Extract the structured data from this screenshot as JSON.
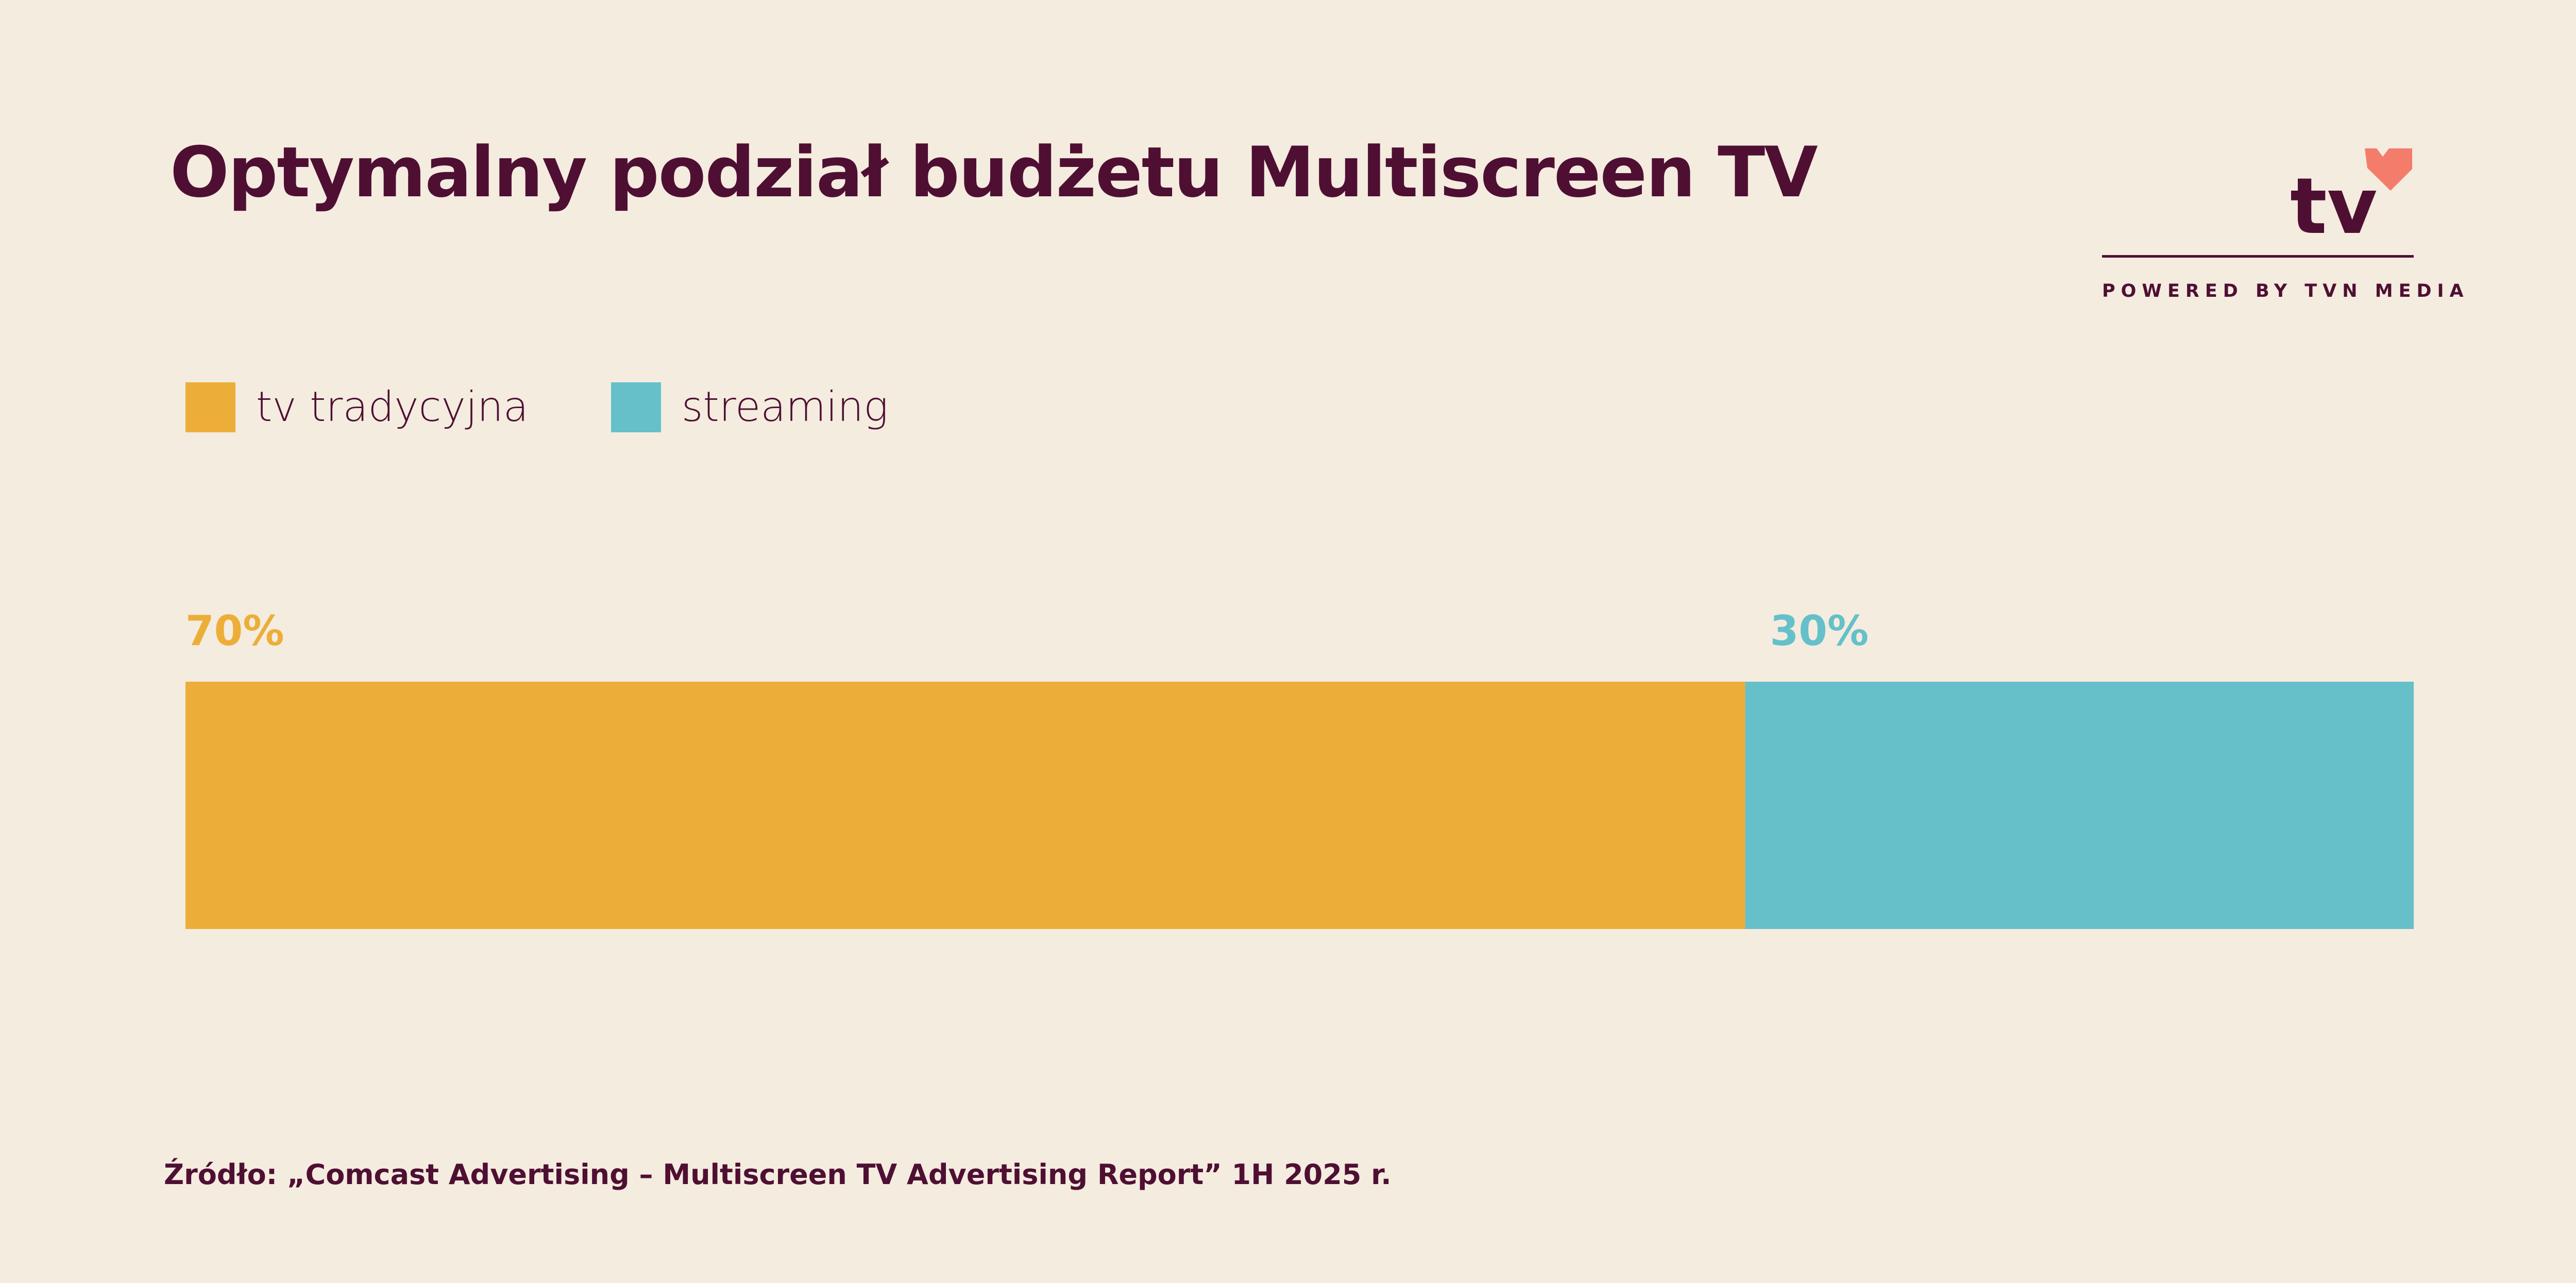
{
  "title": "Optymalny podział budżetu Multiscreen TV",
  "brand": {
    "logo_text": "tv",
    "logo_icon": "heart-icon",
    "tagline": "POWERED BY TVN MEDIA",
    "colors": {
      "text": "#4f0f33",
      "heart": "#f47c6a"
    }
  },
  "legend": [
    {
      "label": "tv tradycyjna",
      "color": "#ecae39"
    },
    {
      "label": "streaming",
      "color": "#65c0ca"
    }
  ],
  "source": "Źródło: „Comcast Advertising – Multiscreen TV Advertising Report” 1H 2025 r.",
  "chart_data": {
    "type": "bar",
    "stacked": true,
    "orientation": "horizontal",
    "unit": "%",
    "series": [
      {
        "name": "tv tradycyjna",
        "value": 70,
        "label": "70%",
        "color": "#ecae39"
      },
      {
        "name": "streaming",
        "value": 30,
        "label": "30%",
        "color": "#65c0ca"
      }
    ],
    "total": 100,
    "legend_position": "top-left",
    "grid": false
  }
}
